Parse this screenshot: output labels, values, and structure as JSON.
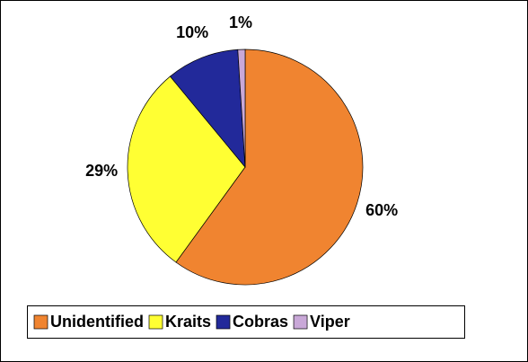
{
  "chart_data": {
    "type": "pie",
    "categories": [
      "Unidentified",
      "Kraits",
      "Cobras",
      "Viper"
    ],
    "values": [
      60,
      29,
      10,
      1
    ],
    "value_labels": [
      "60%",
      "29%",
      "10%",
      "1%"
    ],
    "colors": [
      "#f08430",
      "#ffff33",
      "#22299a",
      "#c9a8d8"
    ],
    "legend": "bottom"
  }
}
